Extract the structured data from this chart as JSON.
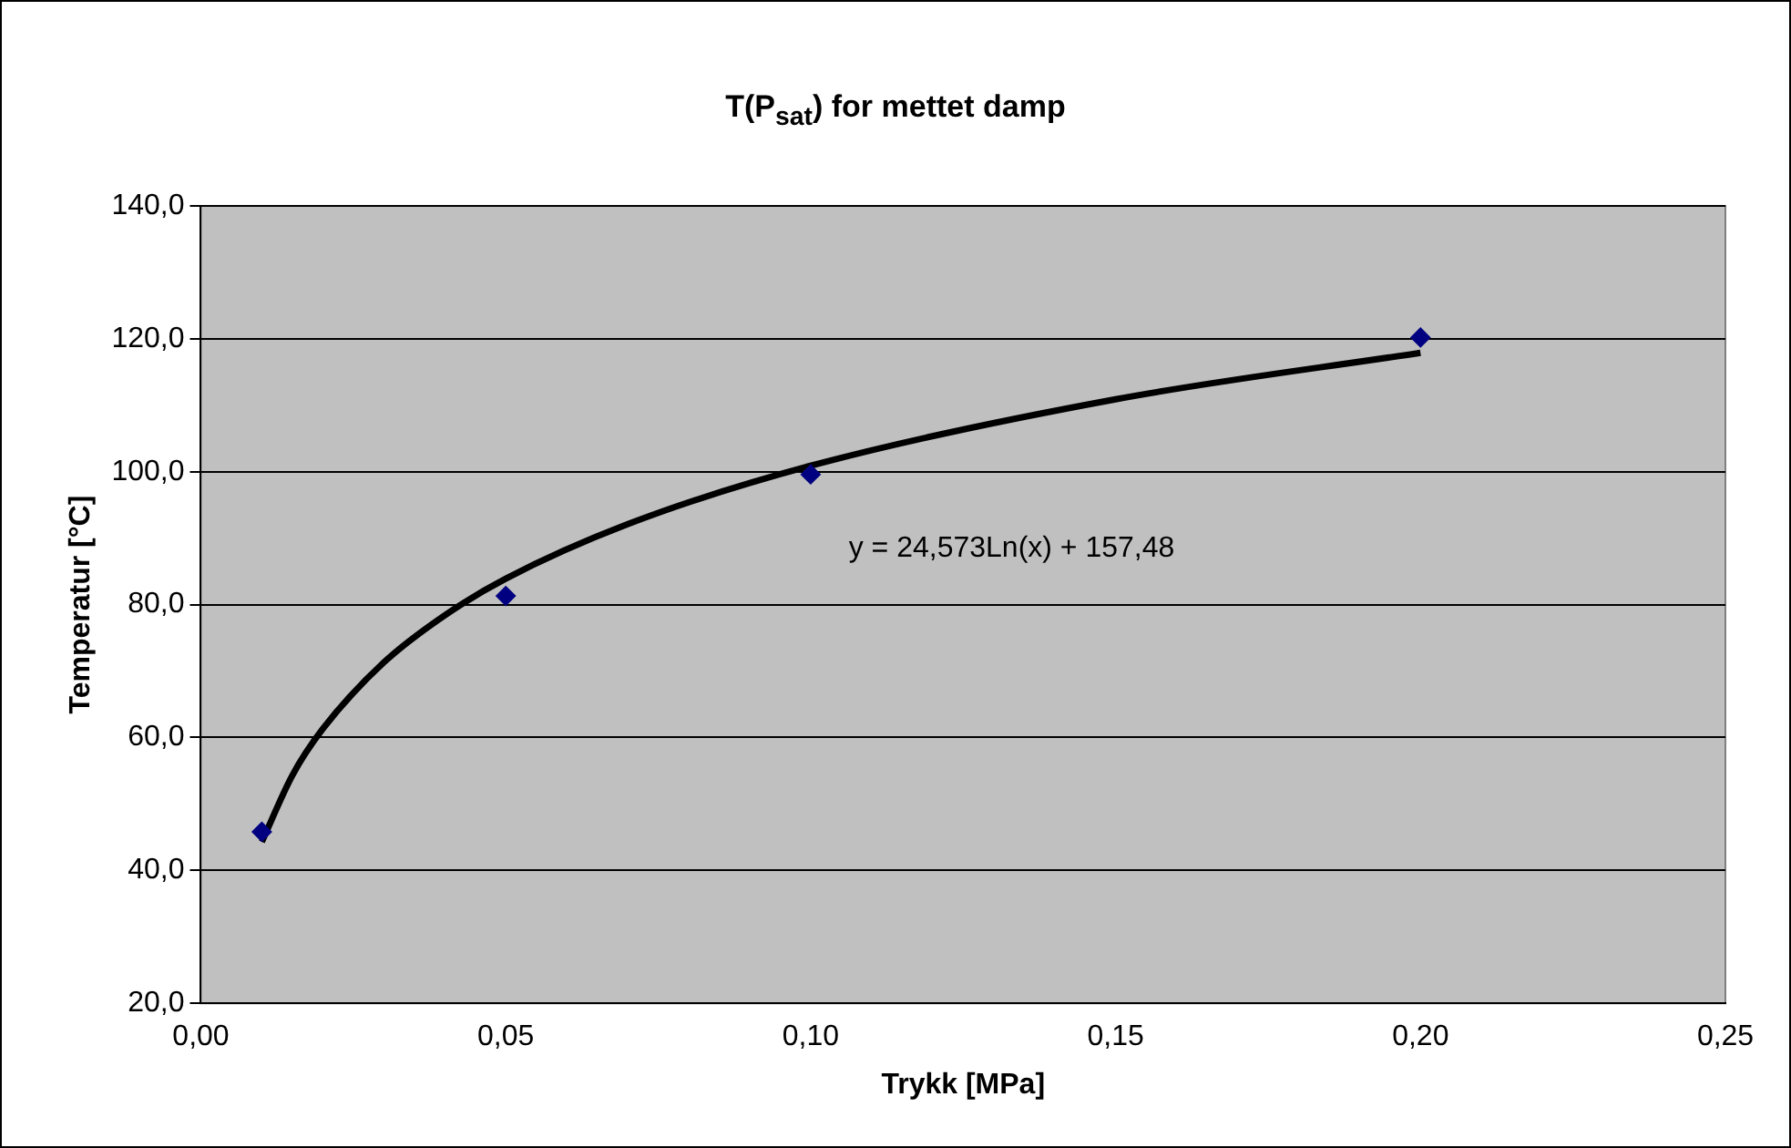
{
  "chart_data": {
    "type": "scatter",
    "title": "T(P$_{sat}$) for mettet damp",
    "xlabel": "Trykk [MPa]",
    "ylabel": "Temperatur [°C]",
    "series": [
      {
        "color": "#000080",
        "marker": "diamond",
        "x": [
          0.01,
          0.05,
          0.1,
          0.2
        ],
        "values": [
          45.8,
          81.3,
          99.6,
          120.2
        ]
      },
      {
        "type": "line",
        "color": "#000000",
        "marker": "none",
        "line_style": "solid",
        "x": [
          0.01,
          0.015,
          0.02,
          0.03,
          0.04,
          0.05,
          0.07,
          0.1,
          0.15,
          0.2
        ],
        "values": [
          44.3,
          54.3,
          61.3,
          71.3,
          78.4,
          83.9,
          92.1,
          100.9,
          110.9,
          117.9
        ]
      }
    ],
    "xlim": [
      0,
      0.25
    ],
    "xticks": [
      {
        "value": 0,
        "label": "0,00"
      },
      {
        "value": 0.05,
        "label": "0,05"
      },
      {
        "value": 0.1,
        "label": "0,10"
      },
      {
        "value": 0.15,
        "label": "0,15"
      },
      {
        "value": 0.2,
        "label": "0,20"
      },
      {
        "value": 0.25,
        "label": "0,25"
      }
    ],
    "ylim": [
      20,
      140
    ],
    "yticks": [
      {
        "value": 20,
        "label": "20,0"
      },
      {
        "value": 40,
        "label": "40,0"
      },
      {
        "value": 60,
        "label": "60,0"
      },
      {
        "value": 80,
        "label": "80,0"
      },
      {
        "value": 100,
        "label": "100,0"
      },
      {
        "value": 120,
        "label": "120,0"
      },
      {
        "value": 140,
        "label": "140,0"
      }
    ],
    "grid": "y",
    "legend": false,
    "annotations": [
      "y = 24,573Ln(x) + 157,48"
    ]
  }
}
